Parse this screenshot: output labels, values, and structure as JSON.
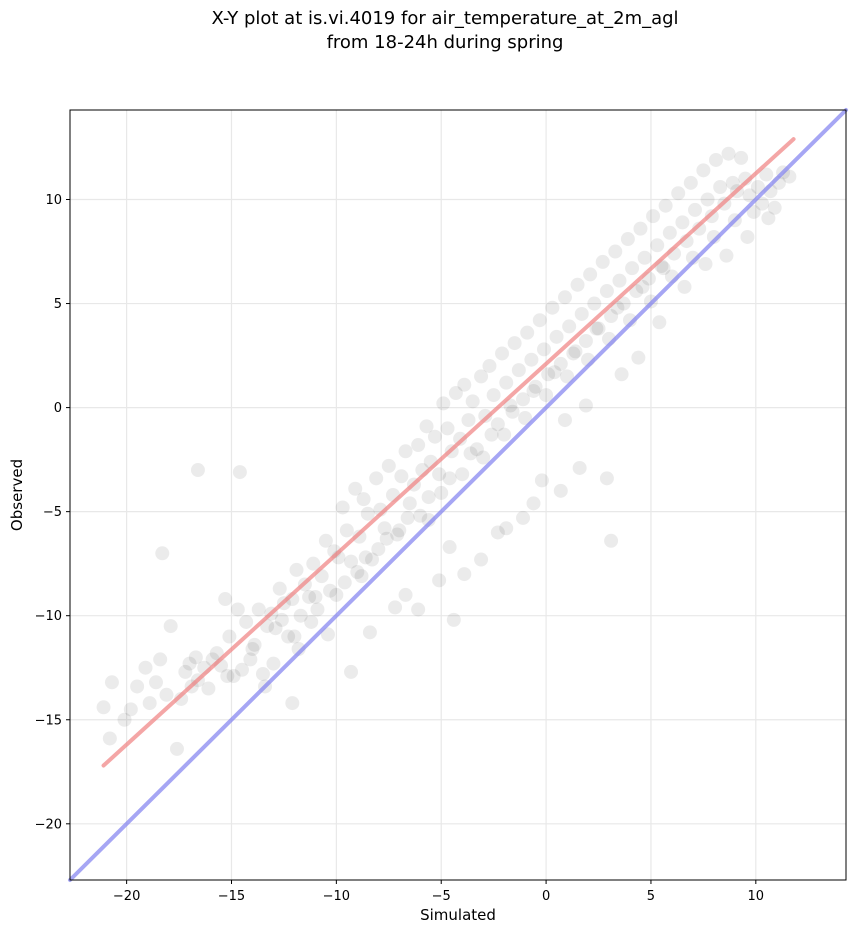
{
  "chart_data": {
    "type": "scatter",
    "title_line1": "X-Y plot at is.vi.4019 for air_temperature_at_2m_agl",
    "title_line2": "from 18-24h during spring",
    "xlabel": "Simulated",
    "ylabel": "Observed",
    "xlim": [
      -22.7,
      14.3
    ],
    "ylim": [
      -22.7,
      14.3
    ],
    "xticks": [
      -20,
      -15,
      -10,
      -5,
      0,
      5,
      10
    ],
    "yticks": [
      -20,
      -15,
      -10,
      -5,
      0,
      5,
      10
    ],
    "xtick_labels": [
      "−20",
      "−15",
      "−10",
      "−5",
      "0",
      "5",
      "10"
    ],
    "ytick_labels": [
      "−20",
      "−15",
      "−10",
      "−5",
      "0",
      "5",
      "10"
    ],
    "grid": true,
    "point_color": "#000000",
    "point_alpha": 0.08,
    "points_x": [
      -21.1,
      -20.8,
      -20.7,
      -20.1,
      -19.5,
      -19.1,
      -18.6,
      -18.4,
      -18.1,
      -17.9,
      -17.4,
      -17.2,
      -17.0,
      -16.9,
      -16.7,
      -16.6,
      -16.3,
      -16.1,
      -15.9,
      -15.7,
      -15.5,
      -15.3,
      -15.1,
      -14.9,
      -14.7,
      -14.5,
      -14.3,
      -14.1,
      -13.9,
      -13.7,
      -13.5,
      -13.3,
      -13.1,
      -12.9,
      -12.7,
      -12.5,
      -12.3,
      -12.1,
      -11.9,
      -11.7,
      -11.5,
      -11.3,
      -11.1,
      -10.9,
      -10.7,
      -10.5,
      -10.3,
      -10.1,
      -9.9,
      -9.7,
      -9.5,
      -9.3,
      -9.1,
      -8.9,
      -8.7,
      -8.5,
      -8.3,
      -8.1,
      -7.9,
      -7.7,
      -7.5,
      -7.3,
      -7.1,
      -6.9,
      -6.7,
      -6.5,
      -6.3,
      -6.1,
      -5.9,
      -5.7,
      -5.5,
      -5.3,
      -5.1,
      -4.9,
      -4.7,
      -4.5,
      -4.3,
      -4.1,
      -3.9,
      -3.7,
      -3.5,
      -3.3,
      -3.1,
      -2.9,
      -2.7,
      -2.5,
      -2.3,
      -2.1,
      -1.9,
      -1.7,
      -1.5,
      -1.3,
      -1.1,
      -0.9,
      -0.7,
      -0.5,
      -0.3,
      -0.1,
      0.1,
      0.3,
      0.5,
      0.7,
      0.9,
      1.1,
      1.3,
      1.5,
      1.7,
      1.9,
      2.1,
      2.3,
      2.5,
      2.7,
      2.9,
      3.1,
      3.3,
      3.5,
      3.7,
      3.9,
      4.1,
      4.3,
      4.5,
      4.7,
      4.9,
      5.1,
      5.3,
      5.5,
      5.7,
      5.9,
      6.1,
      6.3,
      6.5,
      6.7,
      6.9,
      7.1,
      7.3,
      7.5,
      7.7,
      7.9,
      8.1,
      8.3,
      8.5,
      8.7,
      8.9,
      9.1,
      9.3,
      9.5,
      9.7,
      9.9,
      10.1,
      10.3,
      10.5,
      10.7,
      10.9,
      11.1,
      11.3,
      11.6,
      -16.6,
      -14.6,
      -18.3,
      -17.6,
      -6.7,
      -5.1,
      2.9,
      3.1,
      -0.2,
      -1.1,
      -3.9,
      -8.4,
      -9.3,
      -4.4,
      -7.2,
      -11.8,
      -13.4,
      -12.1,
      -15.2,
      -3.1,
      -2.3,
      1.6,
      0.7,
      -0.6,
      -6.1,
      -8.8,
      -10.4,
      -4.6,
      -5.6,
      -1.9,
      0.9,
      1.9,
      3.6,
      4.4,
      5.4,
      6.6,
      7.6,
      8.6,
      9.6,
      10.6,
      -19.8,
      -18.9,
      -14.0,
      -12.6,
      -11.0,
      -9.6,
      -8.0,
      -7.0,
      -6.0,
      -5.0,
      -4.0,
      -3.0,
      -2.0,
      -1.0,
      0.0,
      1.0,
      2.0,
      3.0,
      4.0,
      5.0,
      6.0,
      7.0,
      8.0,
      9.0,
      -13.0,
      -12.0,
      -11.2,
      -10.0,
      -9.0,
      -8.6,
      -7.6,
      -6.6,
      -5.6,
      -4.6,
      -3.6,
      -2.6,
      -1.6,
      -0.6,
      0.4,
      1.4,
      2.4,
      3.4,
      4.6,
      5.6
    ],
    "points_y": [
      -14.4,
      -15.9,
      -13.2,
      -15.0,
      -13.4,
      -12.5,
      -13.2,
      -12.1,
      -13.8,
      -10.5,
      -14.0,
      -12.7,
      -12.3,
      -13.4,
      -12.0,
      -13.1,
      -12.5,
      -13.5,
      -12.1,
      -11.8,
      -12.4,
      -9.2,
      -11.0,
      -12.9,
      -9.7,
      -12.6,
      -10.3,
      -12.1,
      -11.4,
      -9.7,
      -12.8,
      -10.5,
      -9.9,
      -10.6,
      -8.7,
      -9.4,
      -11.0,
      -9.2,
      -7.8,
      -10.0,
      -8.5,
      -9.1,
      -7.5,
      -9.7,
      -8.1,
      -6.4,
      -8.8,
      -6.9,
      -7.2,
      -4.8,
      -5.9,
      -7.4,
      -3.9,
      -6.2,
      -4.4,
      -5.1,
      -7.3,
      -3.4,
      -4.9,
      -5.8,
      -2.8,
      -4.2,
      -6.1,
      -3.3,
      -2.1,
      -4.6,
      -3.7,
      -1.8,
      -3.0,
      -0.9,
      -2.6,
      -1.4,
      -3.2,
      0.2,
      -1.0,
      -2.1,
      0.7,
      -1.5,
      1.1,
      -0.6,
      0.3,
      -2.0,
      1.5,
      -0.4,
      2.0,
      0.6,
      -0.8,
      2.6,
      1.2,
      0.1,
      3.1,
      1.8,
      0.4,
      3.6,
      2.3,
      1.0,
      4.2,
      2.8,
      1.6,
      4.8,
      3.4,
      2.1,
      5.3,
      3.9,
      2.6,
      5.9,
      4.5,
      3.2,
      6.4,
      5.0,
      3.8,
      7.0,
      5.6,
      4.4,
      7.5,
      6.1,
      5.0,
      8.1,
      6.7,
      5.6,
      8.6,
      7.2,
      6.2,
      9.2,
      7.8,
      6.8,
      9.7,
      8.4,
      7.4,
      10.3,
      8.9,
      8.0,
      10.8,
      9.5,
      8.6,
      11.4,
      10.0,
      9.2,
      11.9,
      10.6,
      9.8,
      12.2,
      10.8,
      10.4,
      12.0,
      11.0,
      10.2,
      9.4,
      10.6,
      9.8,
      11.2,
      10.4,
      9.6,
      10.8,
      11.3,
      11.1,
      -3.0,
      -3.1,
      -7.0,
      -16.4,
      -9.0,
      -8.3,
      -3.4,
      -6.4,
      -3.5,
      -5.3,
      -8.0,
      -10.8,
      -12.7,
      -10.2,
      -9.6,
      -11.6,
      -13.4,
      -14.2,
      -12.9,
      -7.3,
      -6.0,
      -2.9,
      -4.0,
      -4.6,
      -9.7,
      -8.1,
      -10.9,
      -6.7,
      -5.4,
      -5.8,
      -0.6,
      0.1,
      1.6,
      2.4,
      4.1,
      5.8,
      6.9,
      7.3,
      8.2,
      9.1,
      -14.5,
      -14.2,
      -11.6,
      -10.2,
      -9.1,
      -8.4,
      -6.8,
      -5.9,
      -5.2,
      -4.1,
      -3.2,
      -2.4,
      -1.3,
      -0.5,
      0.6,
      1.5,
      2.3,
      3.3,
      4.2,
      5.1,
      6.3,
      7.2,
      8.2,
      9.0,
      -12.3,
      -11.0,
      -10.3,
      -9.0,
      -7.9,
      -7.2,
      -6.3,
      -5.3,
      -4.3,
      -3.4,
      -2.2,
      -1.3,
      -0.2,
      0.8,
      1.7,
      2.7,
      3.8,
      4.8,
      5.8,
      6.7
    ],
    "fit_line": {
      "color": "#f08080",
      "x": [
        -21.1,
        11.8
      ],
      "y": [
        -17.2,
        12.9
      ]
    },
    "identity_line": {
      "color": "#8080f0",
      "x": [
        -22.7,
        14.3
      ],
      "y": [
        -22.7,
        14.3
      ]
    }
  }
}
